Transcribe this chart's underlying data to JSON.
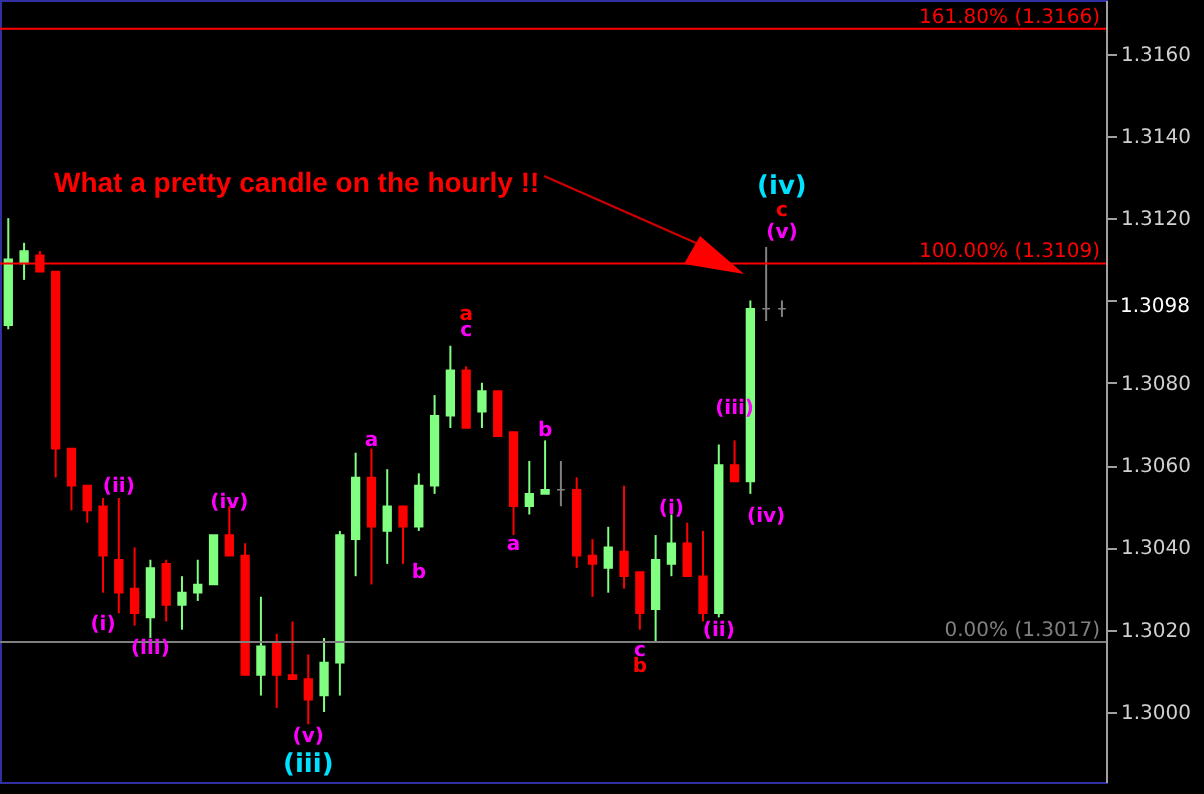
{
  "chart_data": {
    "type": "candlestick",
    "categories": [
      null,
      null,
      null,
      null,
      null,
      null,
      null,
      null,
      null,
      null,
      null,
      null,
      null,
      null,
      null,
      null,
      null,
      null,
      null,
      null,
      null,
      null,
      null,
      null,
      null,
      null,
      null,
      null,
      null,
      null,
      null,
      null,
      null,
      null,
      null,
      null,
      null,
      null,
      null,
      null,
      null,
      null,
      null,
      null,
      null,
      null,
      null,
      null,
      null,
      null,
      null,
      null,
      null,
      null,
      null,
      null,
      null,
      null,
      null,
      null,
      null,
      null,
      null,
      null,
      null,
      null,
      null,
      null,
      null,
      null
    ],
    "ohlc": [
      [
        1.3094,
        1.312,
        1.3093,
        1.311
      ],
      [
        1.3109,
        1.3114,
        1.3105,
        1.3112
      ],
      [
        1.3111,
        1.3112,
        1.3107,
        1.3107
      ],
      [
        1.3107,
        1.3107,
        1.3057,
        1.3064
      ],
      [
        1.3064,
        1.3064,
        1.3049,
        1.3055
      ],
      [
        1.3055,
        1.3055,
        1.3046,
        1.3049
      ],
      [
        1.305,
        1.3052,
        1.3029,
        1.3038
      ],
      [
        1.3037,
        1.3052,
        1.3024,
        1.3029
      ],
      [
        1.303,
        1.304,
        1.3021,
        1.3024
      ],
      [
        1.3023,
        1.3037,
        1.3018,
        1.3035
      ],
      [
        1.3036,
        1.3037,
        1.3022,
        1.3026
      ],
      [
        1.3026,
        1.3033,
        1.302,
        1.3029
      ],
      [
        1.3029,
        1.3037,
        1.3027,
        1.3031
      ],
      [
        1.3031,
        1.3043,
        1.3031,
        1.3043
      ],
      [
        1.3043,
        1.305,
        1.3038,
        1.3038
      ],
      [
        1.3038,
        1.3041,
        1.3009,
        1.3009
      ],
      [
        1.3009,
        1.3028,
        1.3004,
        1.3016
      ],
      [
        1.3017,
        1.3019,
        1.3001,
        1.3009
      ],
      [
        1.3009,
        1.3022,
        1.3008,
        1.3008
      ],
      [
        1.3008,
        1.3014,
        1.2997,
        1.3003
      ],
      [
        1.3004,
        1.3018,
        1.3,
        1.3012
      ],
      [
        1.3012,
        1.3044,
        1.3004,
        1.3043
      ],
      [
        1.3042,
        1.3063,
        1.3033,
        1.3057
      ],
      [
        1.3057,
        1.3064,
        1.3031,
        1.3045
      ],
      [
        1.3044,
        1.3059,
        1.3036,
        1.305
      ],
      [
        1.305,
        1.305,
        1.3036,
        1.3045
      ],
      [
        1.3045,
        1.3058,
        1.3044,
        1.3055
      ],
      [
        1.3055,
        1.3077,
        1.3053,
        1.3072
      ],
      [
        1.3072,
        1.3089,
        1.3069,
        1.3083
      ],
      [
        1.3083,
        1.3084,
        1.3069,
        1.3069
      ],
      [
        1.3073,
        1.308,
        1.3069,
        1.3078
      ],
      [
        1.3078,
        1.3078,
        1.3067,
        1.3067
      ],
      [
        1.3068,
        1.3068,
        1.3043,
        1.305
      ],
      [
        1.305,
        1.3061,
        1.3048,
        1.3053
      ],
      [
        1.3053,
        1.3066,
        1.3053,
        1.3054
      ],
      [
        1.3054,
        1.3061,
        1.305,
        1.3054
      ],
      [
        1.3054,
        1.3057,
        1.3035,
        1.3038
      ],
      [
        1.3038,
        1.3042,
        1.3028,
        1.3036
      ],
      [
        1.3035,
        1.3045,
        1.3029,
        1.304
      ],
      [
        1.3039,
        1.3055,
        1.303,
        1.3033
      ],
      [
        1.3034,
        1.3034,
        1.302,
        1.3024
      ],
      [
        1.3025,
        1.3043,
        1.3017,
        1.3037
      ],
      [
        1.3036,
        1.3048,
        1.3033,
        1.3041
      ],
      [
        1.3041,
        1.3046,
        1.3033,
        1.3033
      ],
      [
        1.3033,
        1.3044,
        1.3022,
        1.3024
      ],
      [
        1.3024,
        1.3065,
        1.3023,
        1.306
      ],
      [
        1.306,
        1.3066,
        1.3056,
        1.3056
      ],
      [
        1.3056,
        1.31,
        1.3053,
        1.3098
      ],
      [
        1.3098,
        1.3113,
        1.3095,
        1.3098
      ],
      [
        1.3098,
        1.31,
        1.3096,
        1.3098
      ],
      null,
      null,
      null,
      null,
      null,
      null,
      null,
      null,
      null,
      null,
      null,
      null,
      null,
      null,
      null,
      null,
      null,
      null,
      null,
      null
    ],
    "colors": [
      "#80ff80",
      "#80ff80",
      "#ff0000",
      "#ff0000",
      "#ff0000",
      "#ff0000",
      "#ff0000",
      "#ff0000",
      "#ff0000",
      "#80ff80",
      "#ff0000",
      "#80ff80",
      "#80ff80",
      "#80ff80",
      "#ff0000",
      "#ff0000",
      "#80ff80",
      "#ff0000",
      "#ff0000",
      "#ff0000",
      "#80ff80",
      "#80ff80",
      "#80ff80",
      "#ff0000",
      "#80ff80",
      "#ff0000",
      "#80ff80",
      "#80ff80",
      "#80ff80",
      "#ff0000",
      "#80ff80",
      "#ff0000",
      "#ff0000",
      "#80ff80",
      "#80ff80",
      "#808080",
      "#ff0000",
      "#ff0000",
      "#80ff80",
      "#ff0000",
      "#ff0000",
      "#80ff80",
      "#80ff80",
      "#ff0000",
      "#ff0000",
      "#80ff80",
      "#ff0000",
      "#80ff80",
      "#808080",
      "#808080",
      null,
      null,
      null,
      null,
      null,
      null,
      null,
      null,
      null,
      null,
      null,
      null,
      null,
      null,
      null,
      null,
      null,
      null,
      null,
      null
    ],
    "ylim": [
      1.2983,
      1.3173
    ],
    "yticks": [
      {
        "value": 1.3,
        "label": "1.3000"
      },
      {
        "value": 1.302,
        "label": "1.3020"
      },
      {
        "value": 1.304,
        "label": "1.3040"
      },
      {
        "value": 1.306,
        "label": "1.3060"
      },
      {
        "value": 1.308,
        "label": "1.3080"
      },
      {
        "value": 1.31,
        "label": null
      },
      {
        "value": 1.312,
        "label": "1.3120"
      },
      {
        "value": 1.314,
        "label": "1.3140"
      },
      {
        "value": 1.316,
        "label": "1.3160"
      }
    ],
    "tick_labels": "y",
    "ref_lines": [
      {
        "axis": "y",
        "value": 1.3166,
        "label": "161.80% (1.3166)",
        "color": "#ff0000"
      },
      {
        "axis": "y",
        "value": 1.3109,
        "label": "100.00% (1.3109)",
        "color": "#ff0000"
      },
      {
        "axis": "y",
        "value": 1.3017,
        "label": "0.00% (1.3017)",
        "color": "#808080"
      }
    ],
    "annotations": [
      "What a pretty candle on the hourly !!",
      "(i)",
      "(ii)",
      "(iii)",
      "(iv)",
      "(v)",
      "(iii)",
      "a",
      "b",
      "a",
      "c",
      "a",
      "b",
      "c",
      "b",
      "(i)",
      "(ii)",
      "(iii)",
      "(iv)",
      "(v)",
      "c",
      "(iv)",
      "1.3098"
    ]
  }
}
